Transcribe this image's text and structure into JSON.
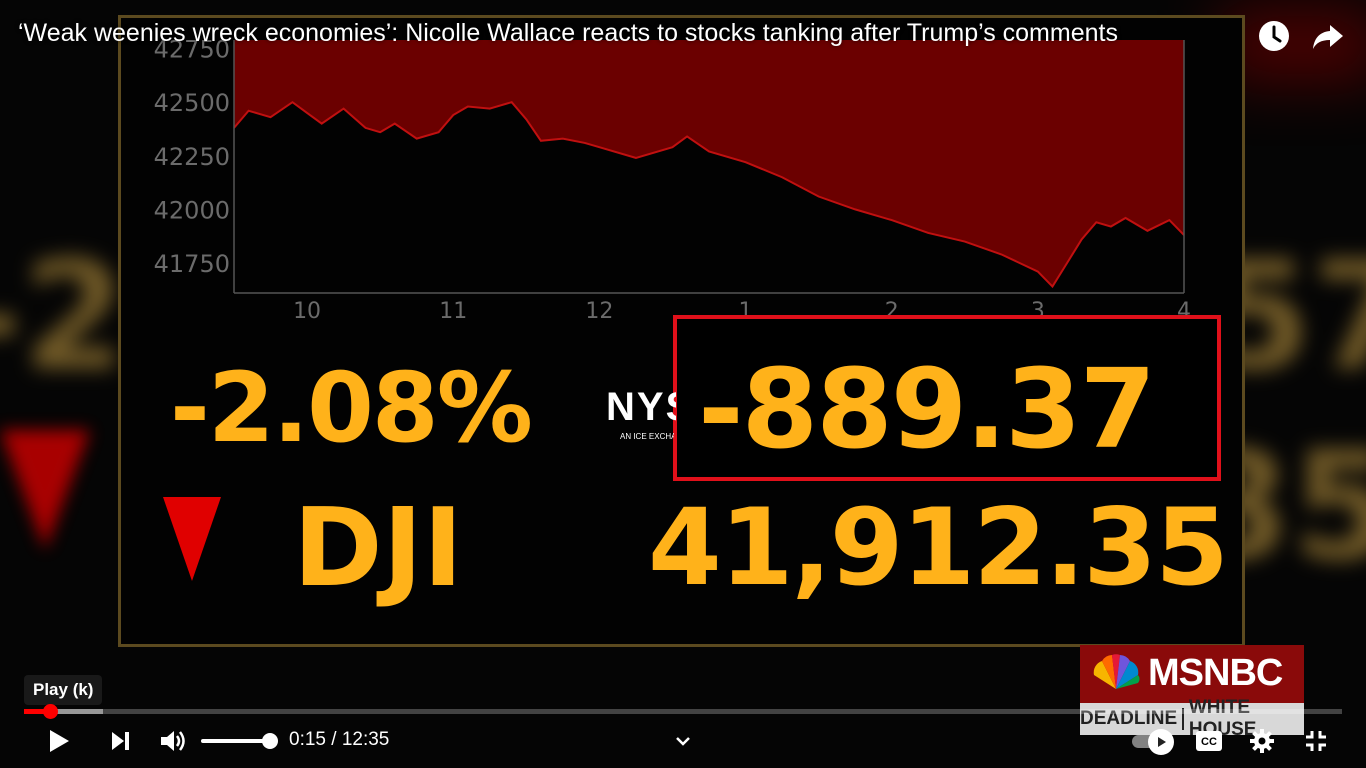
{
  "video": {
    "title": "‘Weak weenies wreck economies’: Nicolle Wallace reacts to stocks tanking after Trump’s comments"
  },
  "broadcast": {
    "percent_change": "-2.08%",
    "index_name": "DJI",
    "point_change": "-889.37",
    "index_level": "41,912.35",
    "exchange_logo": "NYSE",
    "exchange_tagline": "AN ICE EXCHANGE",
    "network": "MSNBC",
    "show_part1": "DEADLINE",
    "show_part2": "WHITE HOUSE"
  },
  "chart_data": {
    "type": "area",
    "title": "",
    "xlabel": "",
    "ylabel": "",
    "x_tick_labels": [
      "10",
      "11",
      "12",
      "1",
      "2",
      "3",
      "4"
    ],
    "y_ticks": [
      42750,
      42500,
      42250,
      42000,
      41750
    ],
    "ylim": [
      41610,
      42790
    ],
    "xlim_hours": [
      9.5,
      16.0
    ],
    "series": [
      {
        "x_hours": [
          9.5,
          9.6,
          9.75,
          9.9,
          10.0,
          10.1,
          10.25,
          10.4,
          10.5,
          10.6,
          10.75,
          10.9,
          11.0,
          11.1,
          11.25,
          11.4,
          11.5,
          11.6,
          11.75,
          11.9,
          12.0,
          12.25,
          12.5,
          12.6,
          12.75,
          13.0,
          13.25,
          13.5,
          13.75,
          14.0,
          14.25,
          14.5,
          14.75,
          15.0,
          15.1,
          15.2,
          15.3,
          15.4,
          15.5,
          15.6,
          15.75,
          15.9,
          16.0
        ],
        "values": [
          42380,
          42460,
          42430,
          42500,
          42450,
          42400,
          42470,
          42380,
          42360,
          42400,
          42330,
          42360,
          42440,
          42480,
          42470,
          42500,
          42420,
          42320,
          42330,
          42310,
          42290,
          42240,
          42290,
          42340,
          42270,
          42220,
          42150,
          42060,
          42000,
          41950,
          41890,
          41850,
          41790,
          41710,
          41640,
          41750,
          41860,
          41940,
          41920,
          41960,
          41900,
          41950,
          41880
        ]
      }
    ],
    "colors": {
      "area_fill": "#6b0000",
      "line": "#c01010",
      "grid_axis": "#555555"
    }
  },
  "player": {
    "tooltip": "Play (k)",
    "time_display": "0:15 / 12:35",
    "progress_fraction": 0.02,
    "buffer_fraction": 0.06,
    "volume_fraction": 0.95,
    "autoplay_on": true,
    "icons": [
      "play-icon",
      "next-icon",
      "volume-icon",
      "chevron-down-icon",
      "autoplay-icon",
      "captions-icon",
      "settings-icon",
      "exit-fullscreen-icon",
      "watch-later-icon",
      "share-icon"
    ]
  }
}
